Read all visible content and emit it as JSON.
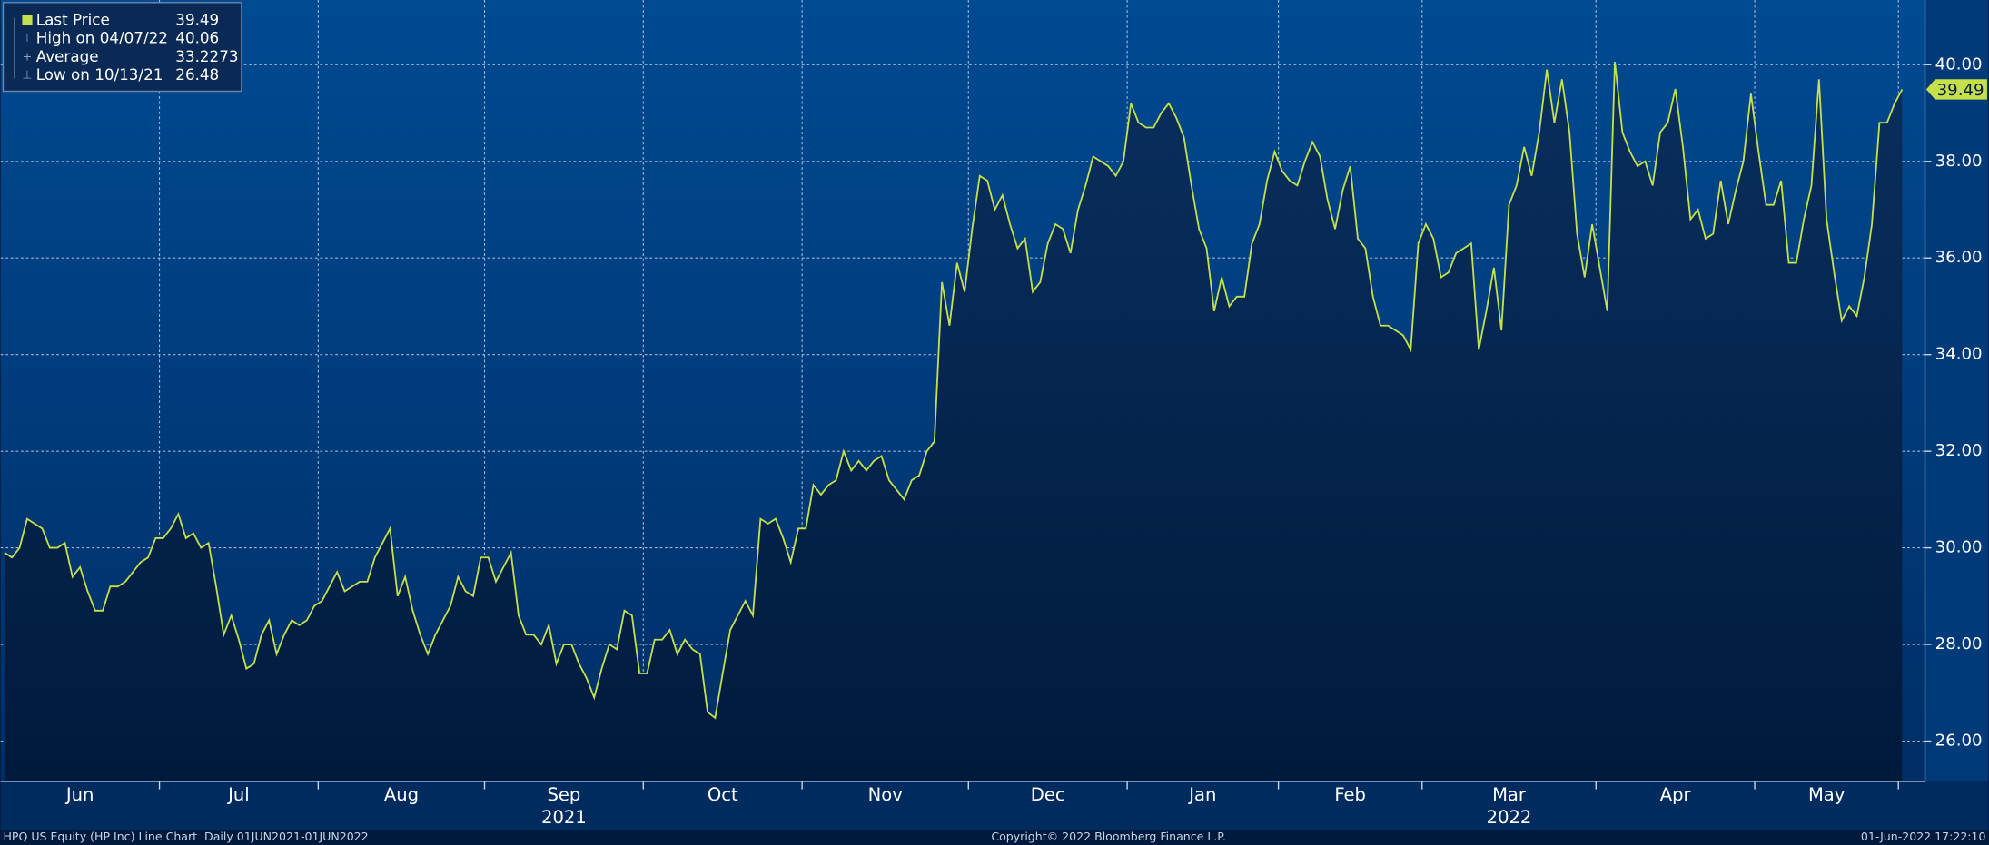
{
  "chart_data": {
    "type": "line",
    "color": "#c5e04a",
    "grid": true,
    "ylim": [
      25.16,
      41.34
    ],
    "yticks": [
      {
        "value": 26,
        "label": "26.00"
      },
      {
        "value": 28,
        "label": "28.00"
      },
      {
        "value": 30,
        "label": "30.00"
      },
      {
        "value": 32,
        "label": "32.00"
      },
      {
        "value": 34,
        "label": "34.00"
      },
      {
        "value": 36,
        "label": "36.00"
      },
      {
        "value": 38,
        "label": "38.00"
      },
      {
        "value": 40,
        "label": "40.00"
      }
    ],
    "legend": [
      {
        "label": "Last Price",
        "value": 39.49
      },
      {
        "label": "High on 04/07/22",
        "value": 40.06
      },
      {
        "label": "Average",
        "value": 33.2273
      },
      {
        "label": "Low on 10/13/21",
        "value": 26.48
      }
    ],
    "months": [
      {
        "name": "Jun",
        "values": [
          29.9,
          29.8,
          30.0,
          30.6,
          30.5,
          30.4,
          30.0,
          30.0,
          30.1,
          29.4,
          29.6,
          29.1,
          28.7,
          28.7,
          29.2,
          29.2,
          29.3,
          29.5,
          29.7,
          29.8,
          30.2
        ]
      },
      {
        "name": "Jul",
        "values": [
          30.2,
          30.4,
          30.7,
          30.2,
          30.3,
          30.0,
          30.1,
          29.2,
          28.2,
          28.6,
          28.1,
          27.5,
          27.6,
          28.2,
          28.5,
          27.8,
          28.2,
          28.5,
          28.4,
          28.5,
          28.8
        ]
      },
      {
        "name": "Aug",
        "values": [
          28.9,
          29.2,
          29.5,
          29.1,
          29.2,
          29.3,
          29.3,
          29.8,
          30.1,
          30.4,
          29.0,
          29.4,
          28.7,
          28.2,
          27.8,
          28.2,
          28.5,
          28.8,
          29.4,
          29.1,
          29.0,
          29.8
        ]
      },
      {
        "name": "Sep",
        "year": "2021",
        "values": [
          29.8,
          29.3,
          29.6,
          29.9,
          28.6,
          28.2,
          28.2,
          28.0,
          28.4,
          27.6,
          28.0,
          28.0,
          27.6,
          27.3,
          26.9,
          27.5,
          28.0,
          27.9,
          28.7,
          28.6,
          27.4
        ]
      },
      {
        "name": "Oct",
        "values": [
          27.4,
          28.1,
          28.1,
          28.3,
          27.8,
          28.1,
          27.9,
          27.8,
          26.6,
          26.48,
          27.4,
          28.3,
          28.6,
          28.9,
          28.6,
          30.6,
          30.5,
          30.6,
          30.2,
          29.7,
          30.4
        ]
      },
      {
        "name": "Nov",
        "values": [
          30.4,
          31.3,
          31.1,
          31.3,
          31.4,
          32.0,
          31.6,
          31.8,
          31.6,
          31.8,
          31.9,
          31.4,
          31.2,
          31.0,
          31.4,
          31.5,
          32.0,
          32.2,
          35.5,
          34.6,
          35.9,
          35.3
        ]
      },
      {
        "name": "Dec",
        "values": [
          36.6,
          37.7,
          37.6,
          37.0,
          37.3,
          36.7,
          36.2,
          36.4,
          35.3,
          35.5,
          36.3,
          36.7,
          36.6,
          36.1,
          37.0,
          37.5,
          38.1,
          38.0,
          37.9,
          37.7,
          38.0
        ]
      },
      {
        "name": "Jan",
        "values": [
          39.2,
          38.8,
          38.7,
          38.7,
          39.0,
          39.2,
          38.9,
          38.5,
          37.5,
          36.6,
          36.2,
          34.9,
          35.6,
          35.0,
          35.2,
          35.2,
          36.3,
          36.7,
          37.6,
          38.2
        ]
      },
      {
        "name": "Feb",
        "values": [
          37.8,
          37.6,
          37.5,
          38.0,
          38.4,
          38.1,
          37.2,
          36.6,
          37.4,
          37.9,
          36.4,
          36.2,
          35.2,
          34.6,
          34.6,
          34.5,
          34.4,
          34.1,
          36.3
        ]
      },
      {
        "name": "Mar",
        "year": "2022",
        "values": [
          36.7,
          36.4,
          35.6,
          35.7,
          36.1,
          36.2,
          36.3,
          34.1,
          34.9,
          35.8,
          34.5,
          37.1,
          37.5,
          38.3,
          37.7,
          38.6,
          39.9,
          38.8,
          39.7,
          38.6,
          36.5,
          35.6,
          36.7
        ]
      },
      {
        "name": "Apr",
        "values": [
          35.8,
          34.9,
          40.06,
          38.6,
          38.2,
          37.9,
          38.0,
          37.5,
          38.6,
          38.8,
          39.5,
          38.3,
          36.8,
          37.0,
          36.4,
          36.5,
          37.6,
          36.7,
          37.4,
          38.0,
          39.4
        ]
      },
      {
        "name": "May",
        "values": [
          38.2,
          37.1,
          37.1,
          37.6,
          35.9,
          35.9,
          36.8,
          37.5,
          39.7,
          36.8,
          35.7,
          34.7,
          35.0,
          34.8,
          35.6,
          36.7,
          38.8,
          38.8,
          39.2
        ]
      },
      {
        "values": [
          39.49
        ]
      }
    ],
    "footer_left": "HPQ US Equity (HP Inc) Line Chart  Daily 01JUN2021-01JUN2022",
    "footer_center": "Copyright© 2022 Bloomberg Finance L.P.",
    "footer_right": "01-Jun-2022 17:22:10"
  }
}
